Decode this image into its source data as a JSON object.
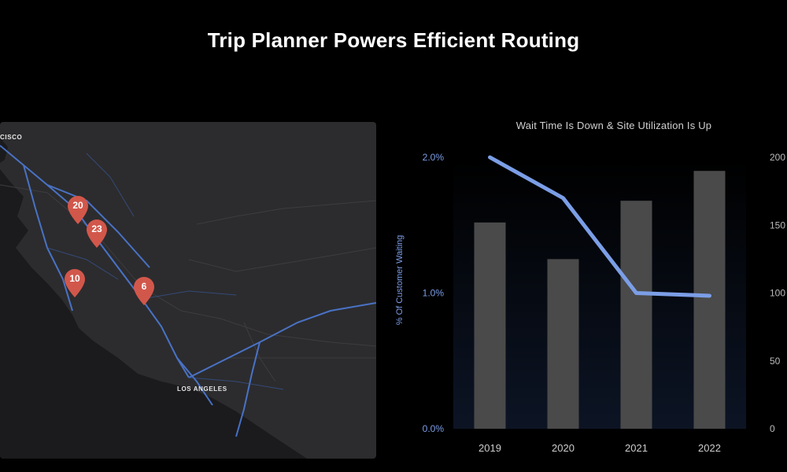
{
  "slide": {
    "title": "Trip Planner Powers Efficient Routing"
  },
  "map": {
    "labels": {
      "san_francisco": "CISCO",
      "los_angeles": "LOS ANGELES"
    },
    "pins": [
      {
        "id": "pin-a",
        "value": "20"
      },
      {
        "id": "pin-b",
        "value": "23"
      },
      {
        "id": "pin-c",
        "value": "10"
      },
      {
        "id": "pin-d",
        "value": "6"
      }
    ],
    "colors": {
      "land": "#2c2c2e",
      "water": "#1a1a1c",
      "route": "#4f7fe0",
      "pin": "#d2574b"
    }
  },
  "chart_data": {
    "type": "bar",
    "title": "Wait Time Is Down & Site Utilization Is Up",
    "categories": [
      "2019",
      "2020",
      "2021",
      "2022"
    ],
    "ylabel": "% Of Customer Waiting",
    "y_left_ticks": [
      "0.0%",
      "1.0%",
      "2.0%"
    ],
    "y_left_range": [
      0,
      2.0
    ],
    "y_right_ticks": [
      "0",
      "50",
      "100",
      "150",
      "200"
    ],
    "y_right_range": [
      0,
      200
    ],
    "series": [
      {
        "type": "bar",
        "axis": "right",
        "values": [
          152,
          125,
          168,
          190
        ],
        "color": "#4a4a4a"
      },
      {
        "type": "line",
        "axis": "left",
        "values": [
          2.0,
          1.7,
          1.0,
          0.98
        ],
        "color": "#7b9ee6"
      }
    ]
  }
}
